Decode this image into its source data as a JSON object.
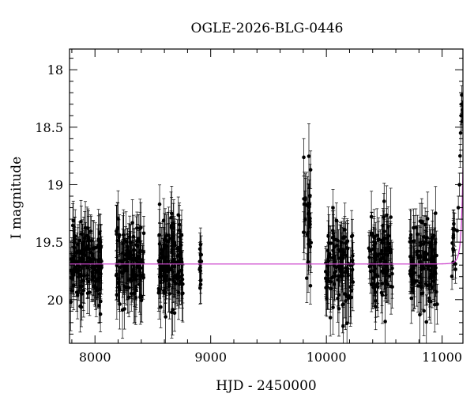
{
  "chart_data": {
    "type": "scatter",
    "title": "OGLE-2026-BLG-0446",
    "xlabel": "HJD - 2450000",
    "ylabel": "I magnitude",
    "xlim": [
      7780,
      11180
    ],
    "ylim": [
      20.38,
      17.82
    ],
    "y_inverted": true,
    "grid": false,
    "minor_ticks": true,
    "x_ticks": [
      8000,
      9000,
      10000,
      11000
    ],
    "y_ticks": [
      18,
      18.5,
      19,
      19.5,
      20
    ],
    "x_tick_labels": [
      "8000",
      "9000",
      "10000",
      "11000"
    ],
    "y_tick_labels": [
      "18",
      "18.5",
      "19",
      "19.5",
      "20"
    ],
    "point_color": "#000000",
    "model_color": "#cc44cc",
    "baseline_magnitude": 19.69,
    "seasons": [
      {
        "start": 7790,
        "end": 8060,
        "n": 150,
        "mean": 19.7,
        "spread": 0.17,
        "err": 0.2
      },
      {
        "start": 8180,
        "end": 8430,
        "n": 130,
        "mean": 19.68,
        "spread": 0.18,
        "err": 0.2
      },
      {
        "start": 8550,
        "end": 8760,
        "n": 130,
        "mean": 19.68,
        "spread": 0.19,
        "err": 0.2
      },
      {
        "start": 8900,
        "end": 8920,
        "n": 12,
        "mean": 19.75,
        "spread": 0.12,
        "err": 0.15
      },
      {
        "start": 9800,
        "end": 9870,
        "n": 30,
        "mean": 19.3,
        "spread": 0.3,
        "err": 0.22
      },
      {
        "start": 9990,
        "end": 10230,
        "n": 110,
        "mean": 19.68,
        "spread": 0.2,
        "err": 0.2
      },
      {
        "start": 10360,
        "end": 10570,
        "n": 100,
        "mean": 19.66,
        "spread": 0.2,
        "err": 0.2
      },
      {
        "start": 10720,
        "end": 10960,
        "n": 120,
        "mean": 19.68,
        "spread": 0.2,
        "err": 0.2
      },
      {
        "start": 11080,
        "end": 11125,
        "n": 15,
        "mean": 19.55,
        "spread": 0.15,
        "err": 0.15
      }
    ],
    "rise_points": [
      {
        "x": 11130,
        "y": 19.4,
        "err": 0.1
      },
      {
        "x": 11140,
        "y": 19.2,
        "err": 0.1
      },
      {
        "x": 11150,
        "y": 19.0,
        "err": 0.1
      },
      {
        "x": 11155,
        "y": 18.75,
        "err": 0.1
      },
      {
        "x": 11160,
        "y": 18.55,
        "err": 0.1
      },
      {
        "x": 11165,
        "y": 18.4,
        "err": 0.08
      },
      {
        "x": 11168,
        "y": 18.3,
        "err": 0.08
      },
      {
        "x": 11170,
        "y": 18.22,
        "err": 0.08
      },
      {
        "x": 11172,
        "y": 18.45,
        "err": 0.08
      },
      {
        "x": 11175,
        "y": 18.35,
        "err": 0.08
      }
    ]
  }
}
